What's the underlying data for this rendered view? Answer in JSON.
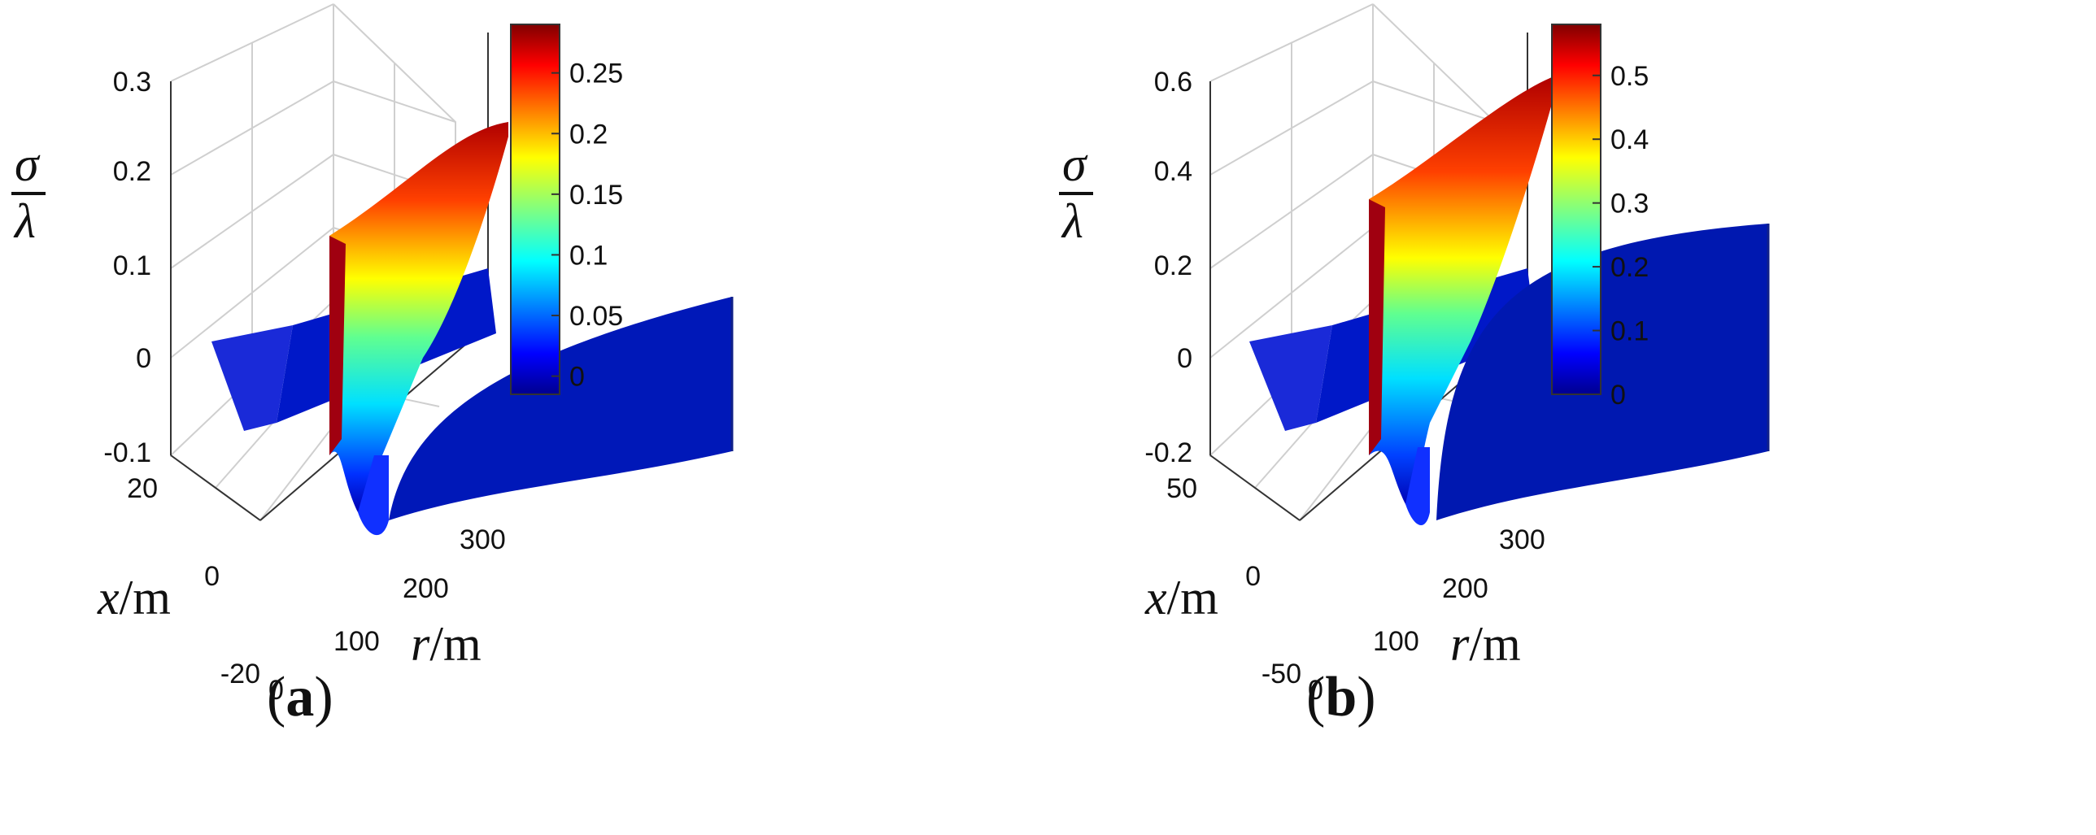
{
  "chart_data": [
    {
      "type": "surface",
      "subplot_label_open": "(",
      "subplot_label_letter": "a",
      "subplot_label_close": ")",
      "zlabel_num": "σ",
      "zlabel_den": "λ",
      "xlabel_var": "x",
      "xlabel_unit": "/m",
      "rlabel_var": "r",
      "rlabel_unit": "/m",
      "z_ticks": [
        "0.3",
        "0.2",
        "0.1",
        "0",
        "-0.1"
      ],
      "z_tick_values": [
        0.3,
        0.2,
        0.1,
        0,
        -0.1
      ],
      "zlim": [
        -0.1,
        0.3
      ],
      "x_ticks": [
        "20",
        "0",
        "-20"
      ],
      "r_ticks": [
        "0",
        "100",
        "200",
        "300"
      ],
      "colorbar_ticks": [
        "0.25",
        "0.2",
        "0.15",
        "0.1",
        "0.05",
        "0"
      ],
      "colorbar_values": [
        0.25,
        0.2,
        0.15,
        0.1,
        0.05,
        0
      ],
      "colorbar_range": [
        -0.015,
        0.29
      ],
      "peak_value": 0.29,
      "peak_r": 40,
      "colormap": "jet"
    },
    {
      "type": "surface",
      "subplot_label_open": "(",
      "subplot_label_letter": "b",
      "subplot_label_close": ")",
      "zlabel_num": "σ",
      "zlabel_den": "λ",
      "xlabel_var": "x",
      "xlabel_unit": "/m",
      "rlabel_var": "r",
      "rlabel_unit": "/m",
      "z_ticks": [
        "0.6",
        "0.4",
        "0.2",
        "0",
        "-0.2"
      ],
      "z_tick_values": [
        0.6,
        0.4,
        0.2,
        0,
        -0.2
      ],
      "zlim": [
        -0.2,
        0.6
      ],
      "x_ticks": [
        "50",
        "0",
        "-50"
      ],
      "r_ticks": [
        "0",
        "100",
        "200",
        "300"
      ],
      "colorbar_ticks": [
        "0.5",
        "0.4",
        "0.3",
        "0.2",
        "0.1",
        "0"
      ],
      "colorbar_values": [
        0.5,
        0.4,
        0.3,
        0.2,
        0.1,
        0
      ],
      "colorbar_range": [
        0,
        0.58
      ],
      "peak_value": 0.58,
      "peak_r": 40,
      "colormap": "jet"
    }
  ]
}
